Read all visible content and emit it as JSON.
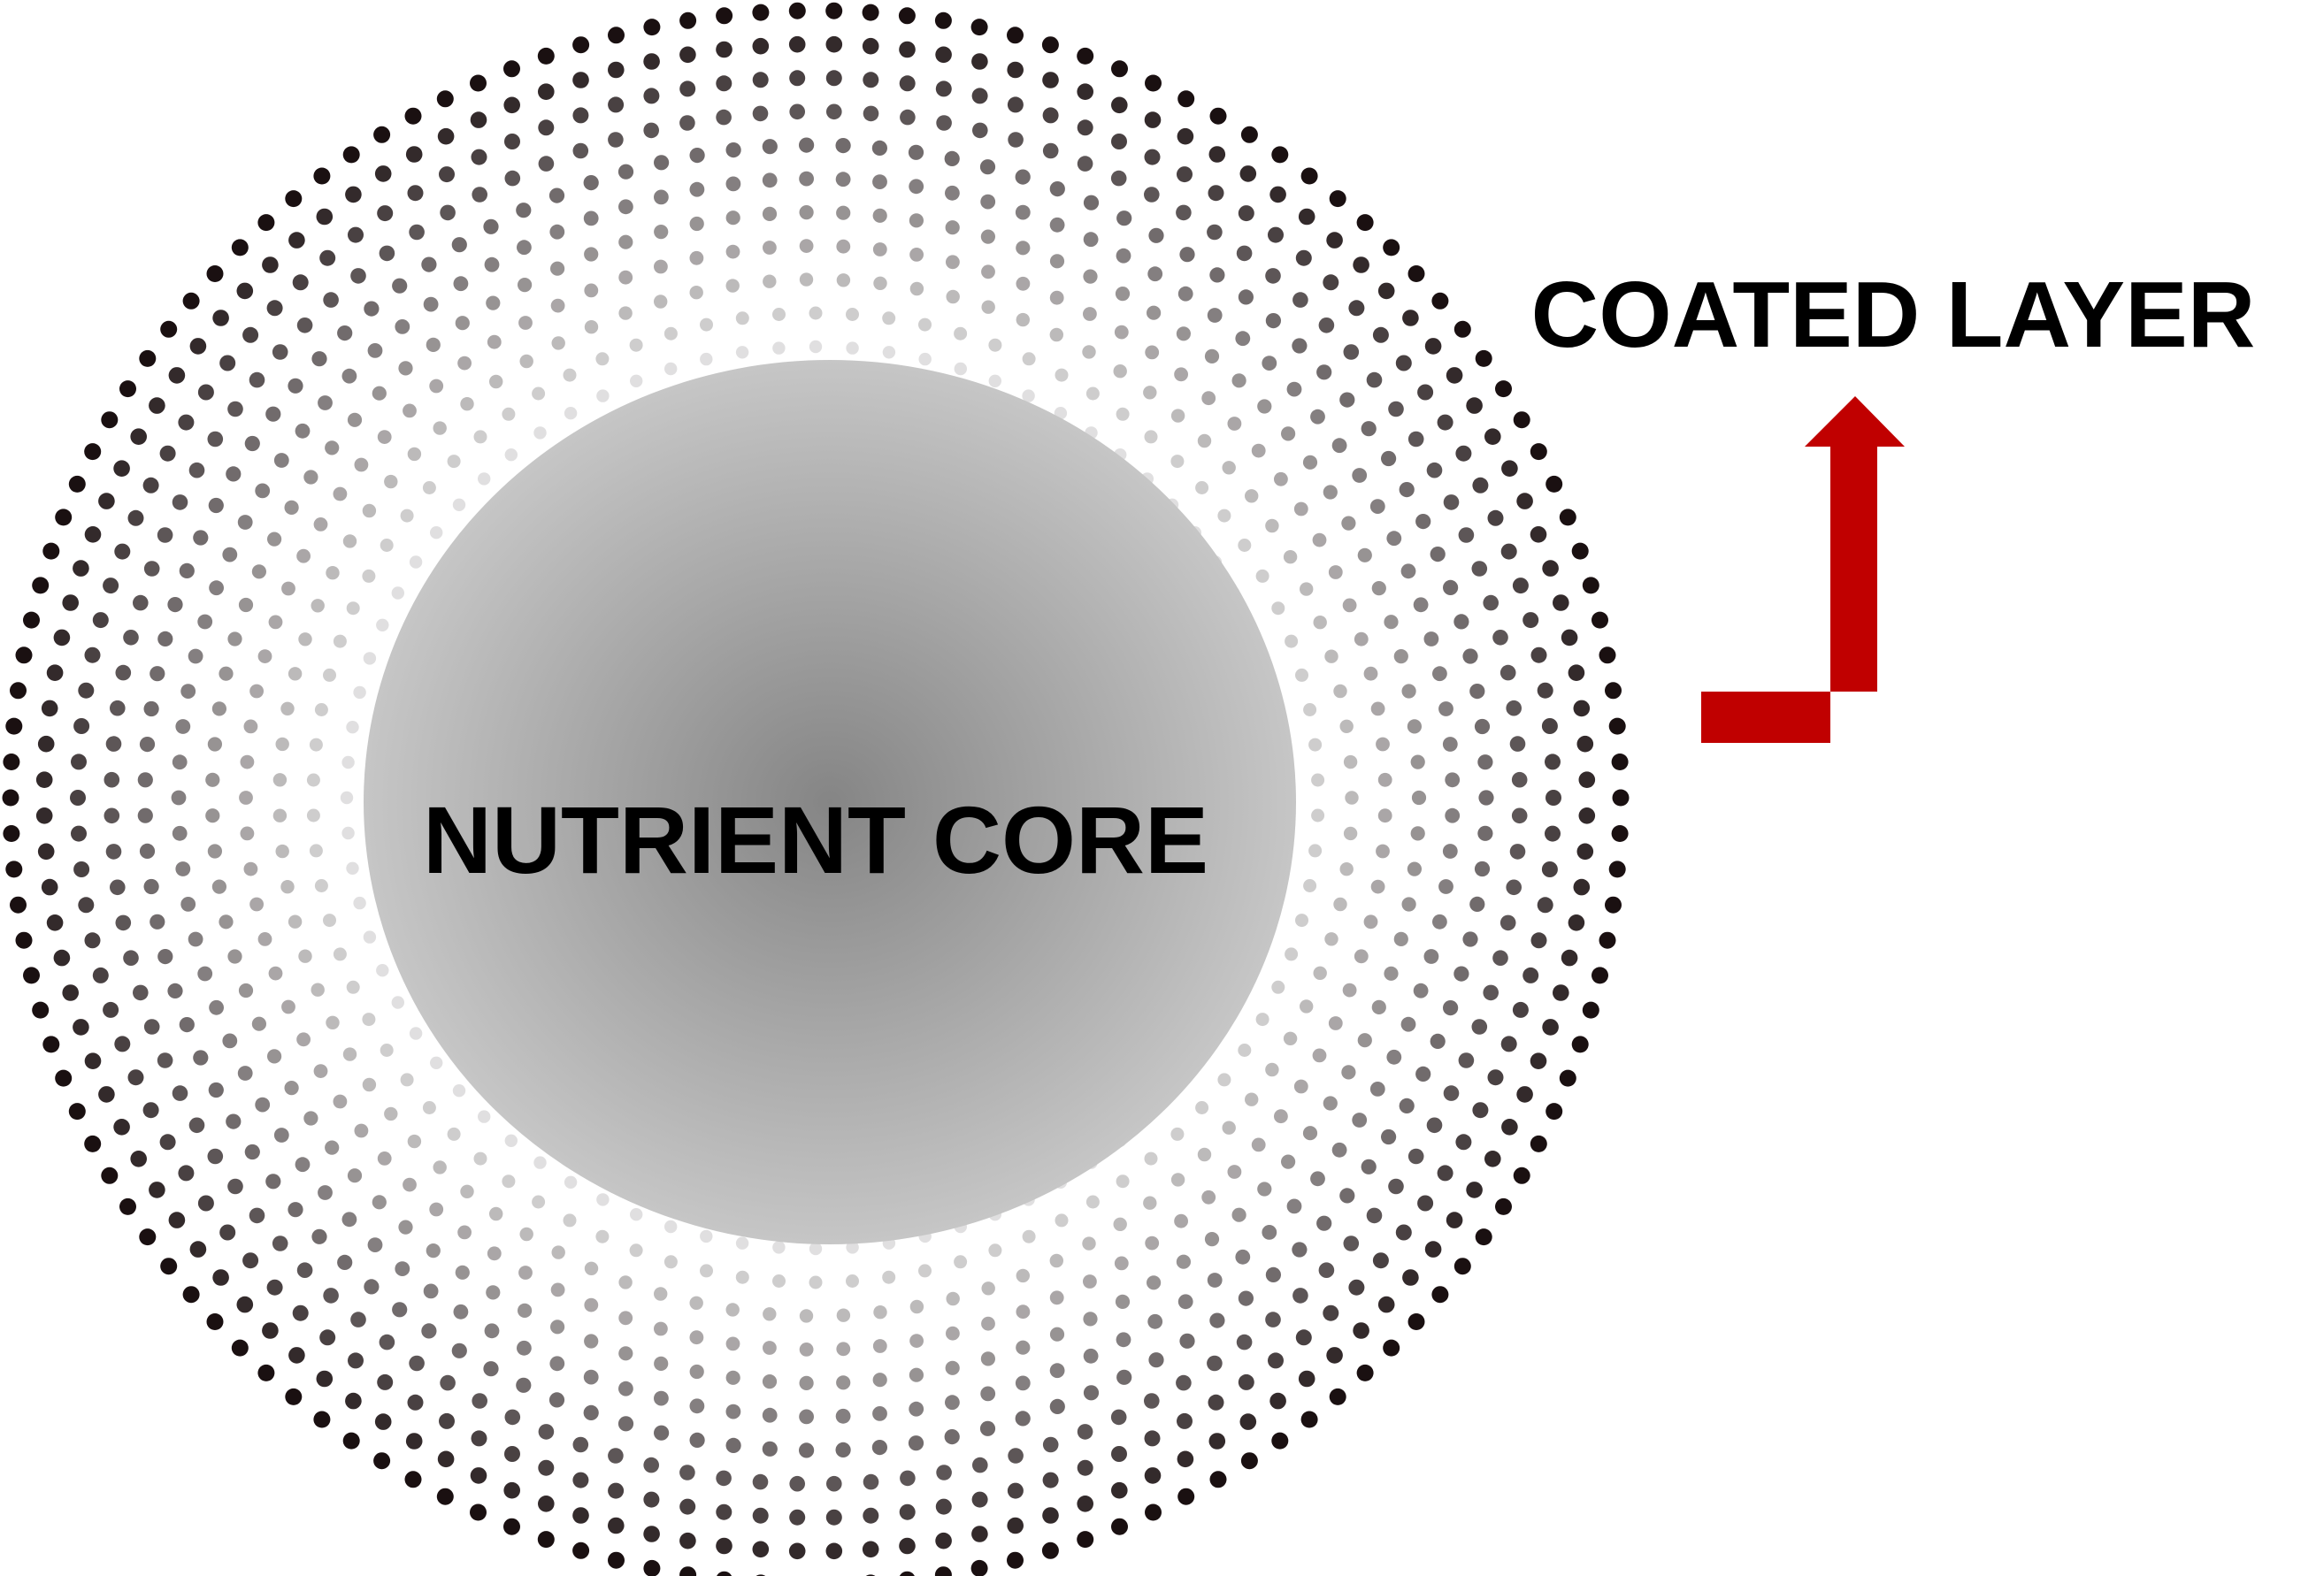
{
  "labels": {
    "core": "NUTRIENT CORE",
    "layer": "COATED LAYER"
  },
  "colors": {
    "background": "#ffffff",
    "core_center": "#858585",
    "core_edge": "#c6c6c6",
    "dot_outer": "#1a1011",
    "dot_inner": "#f2f2f2",
    "arrow": "#c00000",
    "text": "#000000"
  },
  "icons": {
    "arrow": "elbow-up-arrow-icon"
  }
}
